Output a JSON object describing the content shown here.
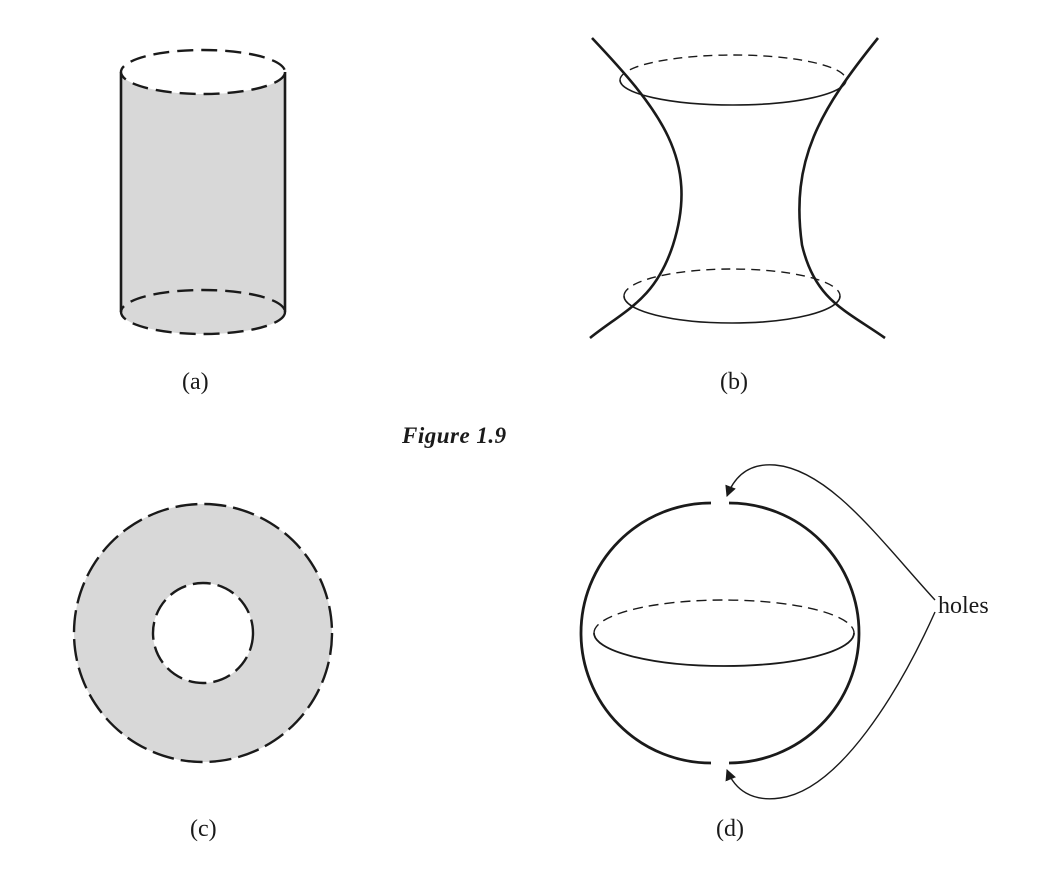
{
  "figure": {
    "caption": "Figure 1.9",
    "panels": [
      {
        "id": "a",
        "label": "(a)"
      },
      {
        "id": "b",
        "label": "(b)"
      },
      {
        "id": "c",
        "label": "(c)"
      },
      {
        "id": "d",
        "label": "(d)"
      }
    ],
    "annotations": {
      "holes": "holes"
    }
  },
  "colors": {
    "ink": "#1a1a1a",
    "fill": "#d8d8d8"
  }
}
